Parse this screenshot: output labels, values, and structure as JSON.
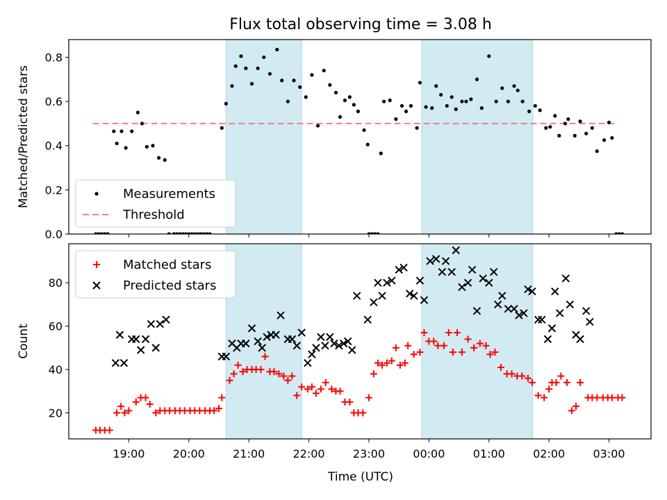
{
  "chart_data": {
    "title": "Flux total observing time = 3.08 h",
    "xlabel": "Time (UTC)",
    "x_unit": "hours (UTC, continuing past midnight)",
    "x_range": [
      18.0,
      27.7
    ],
    "x_ticks": [
      {
        "value": 19,
        "label": "19:00"
      },
      {
        "value": 20,
        "label": "20:00"
      },
      {
        "value": 21,
        "label": "21:00"
      },
      {
        "value": 22,
        "label": "22:00"
      },
      {
        "value": 23,
        "label": "23:00"
      },
      {
        "value": 24,
        "label": "00:00"
      },
      {
        "value": 25,
        "label": "01:00"
      },
      {
        "value": 26,
        "label": "02:00"
      },
      {
        "value": 27,
        "label": "03:00"
      }
    ],
    "shaded_spans": [
      [
        20.62,
        21.88
      ],
      [
        23.88,
        25.73
      ]
    ],
    "shade_color": "#add8e6",
    "panels": [
      {
        "type": "scatter",
        "ylabel": "Matched/Predicted stars",
        "ylim": [
          0,
          0.88
        ],
        "y_ticks": [
          0.0,
          0.2,
          0.4,
          0.6,
          0.8
        ],
        "y_tick_labels": [
          "0.0",
          "0.2",
          "0.4",
          "0.6",
          "0.8"
        ],
        "legend": [
          "Measurements",
          "Threshold"
        ],
        "legend_position": "lower-left",
        "threshold": {
          "name": "Threshold",
          "value": 0.5,
          "x_range": [
            18.4,
            27.15
          ],
          "color": "#f08080"
        },
        "series": [
          {
            "name": "Measurements",
            "color": "#000000",
            "x": [
              18.45,
              18.5,
              18.55,
              18.6,
              18.65,
              18.75,
              18.8,
              18.88,
              18.95,
              19.05,
              19.15,
              19.22,
              19.3,
              19.4,
              19.5,
              19.6,
              19.67,
              19.75,
              19.8,
              19.85,
              19.9,
              19.95,
              20.0,
              20.05,
              20.1,
              20.15,
              20.2,
              20.25,
              20.3,
              20.35,
              20.55,
              20.62,
              20.72,
              20.78,
              20.87,
              20.95,
              21.05,
              21.15,
              21.25,
              21.35,
              21.47,
              21.55,
              21.65,
              21.75,
              21.85,
              21.95,
              22.05,
              22.15,
              22.25,
              22.35,
              22.45,
              22.52,
              22.6,
              22.68,
              22.75,
              22.82,
              22.92,
              22.98,
              23.0,
              23.05,
              23.1,
              23.15,
              23.2,
              23.25,
              23.35,
              23.45,
              23.55,
              23.62,
              23.7,
              23.8,
              23.85,
              23.95,
              24.05,
              24.12,
              24.2,
              24.3,
              24.38,
              24.45,
              24.55,
              24.62,
              24.7,
              24.8,
              24.88,
              25.0,
              25.12,
              25.22,
              25.32,
              25.42,
              25.48,
              25.56,
              25.67,
              25.77,
              25.85,
              25.95,
              26.02,
              26.1,
              26.17,
              26.27,
              26.32,
              26.43,
              26.52,
              26.62,
              26.72,
              26.8,
              26.92,
              27.0,
              27.05,
              27.12,
              27.17,
              27.22
            ],
            "y": [
              0,
              0,
              0,
              0,
              0,
              0.465,
              0.41,
              0.465,
              0.39,
              0.465,
              0.55,
              0.5,
              0.395,
              0.4,
              0.345,
              0.335,
              0,
              0,
              0,
              0,
              0,
              0,
              0,
              0,
              0,
              0,
              0,
              0,
              0,
              0,
              0.48,
              0.59,
              0.67,
              0.76,
              0.805,
              0.75,
              0.68,
              0.75,
              0.8,
              0.725,
              0.835,
              0.695,
              0.6,
              0.695,
              0.665,
              0.62,
              0.72,
              0.49,
              0.74,
              0.675,
              0.64,
              0.53,
              0.605,
              0.62,
              0.585,
              0.555,
              0.47,
              0.405,
              0,
              0,
              0,
              0,
              0.365,
              0.6,
              0.605,
              0.52,
              0.58,
              0.555,
              0.58,
              0.48,
              0.685,
              0.575,
              0.57,
              0.67,
              0.63,
              0.58,
              0.62,
              0.565,
              0.6,
              0.6,
              0.61,
              0.7,
              0.57,
              0.805,
              0.6,
              0.66,
              0.6,
              0.67,
              0.65,
              0.6,
              0.555,
              0.58,
              0.56,
              0.48,
              0.485,
              0.535,
              0.445,
              0.5,
              0.52,
              0.445,
              0.51,
              0.455,
              0.48,
              0.375,
              0.425,
              0.505,
              0.435,
              0,
              0,
              0
            ]
          }
        ]
      },
      {
        "type": "scatter",
        "ylabel": "Count",
        "ylim": [
          8,
          98
        ],
        "y_ticks": [
          20,
          40,
          60,
          80
        ],
        "y_tick_labels": [
          "20",
          "40",
          "60",
          "80"
        ],
        "legend": [
          "Matched stars",
          "Predicted stars"
        ],
        "legend_position": "upper-left",
        "series": [
          {
            "name": "Matched stars",
            "marker": "plus",
            "color": "#ff0000",
            "x": [
              18.45,
              18.52,
              18.6,
              18.68,
              18.8,
              18.87,
              18.93,
              19.0,
              19.12,
              19.2,
              19.28,
              19.35,
              19.45,
              19.52,
              19.6,
              19.68,
              19.77,
              19.85,
              19.93,
              20.02,
              20.1,
              20.18,
              20.27,
              20.35,
              20.42,
              20.5,
              20.55,
              20.68,
              20.75,
              20.82,
              20.9,
              20.97,
              21.05,
              21.12,
              21.2,
              21.27,
              21.35,
              21.42,
              21.5,
              21.58,
              21.65,
              21.72,
              21.8,
              21.88,
              21.98,
              22.05,
              22.12,
              22.2,
              22.28,
              22.38,
              22.45,
              22.52,
              22.6,
              22.68,
              22.75,
              22.82,
              22.9,
              23.0,
              23.08,
              23.15,
              23.22,
              23.3,
              23.38,
              23.45,
              23.52,
              23.6,
              23.65,
              23.75,
              23.85,
              23.92,
              24.0,
              24.08,
              24.15,
              24.25,
              24.33,
              24.4,
              24.47,
              24.55,
              24.65,
              24.75,
              24.85,
              24.95,
              25.02,
              25.1,
              25.2,
              25.3,
              25.38,
              25.47,
              25.55,
              25.65,
              25.72,
              25.82,
              25.92,
              26.0,
              26.05,
              26.12,
              26.2,
              26.3,
              26.38,
              26.45,
              26.52,
              26.65,
              26.72,
              26.8,
              26.9,
              26.98,
              27.05,
              27.15,
              27.22
            ],
            "y": [
              12,
              12,
              12,
              12,
              20,
              23,
              20,
              21,
              25,
              27,
              27,
              24,
              20,
              21,
              21,
              21,
              21,
              21,
              21,
              21,
              21,
              21,
              21,
              21,
              21,
              22,
              27,
              35,
              38,
              42,
              39,
              40,
              40,
              40,
              40,
              46,
              39,
              39,
              38,
              37,
              35,
              37,
              28,
              32,
              31,
              32,
              29,
              31,
              34,
              31,
              30,
              30,
              25,
              25,
              20,
              20,
              20,
              27,
              38,
              43,
              42,
              43,
              44,
              50,
              42,
              43,
              51,
              47,
              48,
              57,
              53,
              53,
              51,
              51,
              57,
              48,
              57,
              48,
              54,
              50,
              52,
              51,
              47,
              48,
              41,
              38,
              38,
              37,
              37,
              36,
              34,
              28,
              27,
              31,
              34,
              34,
              37,
              34,
              21,
              23,
              34,
              27,
              27,
              27,
              27,
              27,
              27,
              27,
              27
            ],
            "_note_x_overflow": false
          },
          {
            "name": "Predicted stars",
            "marker": "x",
            "color": "#000000",
            "x": [
              18.78,
              18.85,
              18.92,
              19.05,
              19.12,
              19.2,
              19.28,
              19.37,
              19.45,
              19.52,
              19.62,
              20.55,
              20.62,
              20.72,
              20.8,
              20.87,
              20.95,
              21.05,
              21.15,
              21.22,
              21.3,
              21.37,
              21.45,
              21.53,
              21.65,
              21.72,
              21.8,
              21.88,
              21.98,
              22.05,
              22.12,
              22.2,
              22.27,
              22.35,
              22.42,
              22.5,
              22.58,
              22.65,
              22.72,
              22.8,
              22.98,
              23.08,
              23.15,
              23.22,
              23.3,
              23.38,
              23.5,
              23.58,
              23.68,
              23.75,
              23.85,
              23.92,
              24.02,
              24.12,
              24.22,
              24.28,
              24.38,
              24.45,
              24.55,
              24.65,
              24.72,
              24.8,
              24.9,
              25.0,
              25.08,
              25.15,
              25.22,
              25.32,
              25.42,
              25.5,
              25.58,
              25.65,
              25.72,
              25.82,
              25.88,
              25.98,
              26.05,
              26.1,
              26.18,
              26.28,
              26.35,
              26.45,
              26.52,
              26.62,
              26.68,
              26.78,
              26.85
            ],
            "y": [
              43,
              56,
              43,
              54,
              54,
              49,
              54,
              61,
              50,
              61,
              63,
              46,
              46,
              52,
              50,
              52,
              52,
              59,
              53,
              50,
              55,
              56,
              56,
              65,
              54,
              54,
              51,
              57,
              43,
              47,
              50,
              55,
              51,
              55,
              52,
              51,
              52,
              53,
              49,
              74,
              63,
              71,
              80,
              74,
              80,
              81,
              86,
              87,
              75,
              74,
              81,
              72,
              90,
              91,
              85,
              90,
              85,
              95,
              78,
              80,
              86,
              67,
              82,
              80,
              85,
              70,
              74,
              68,
              68,
              65,
              66,
              77,
              76,
              63,
              63,
              54,
              59,
              76,
              66,
              82,
              70,
              56,
              54,
              67,
              62,
              0,
              0
            ]
          }
        ]
      }
    ]
  }
}
